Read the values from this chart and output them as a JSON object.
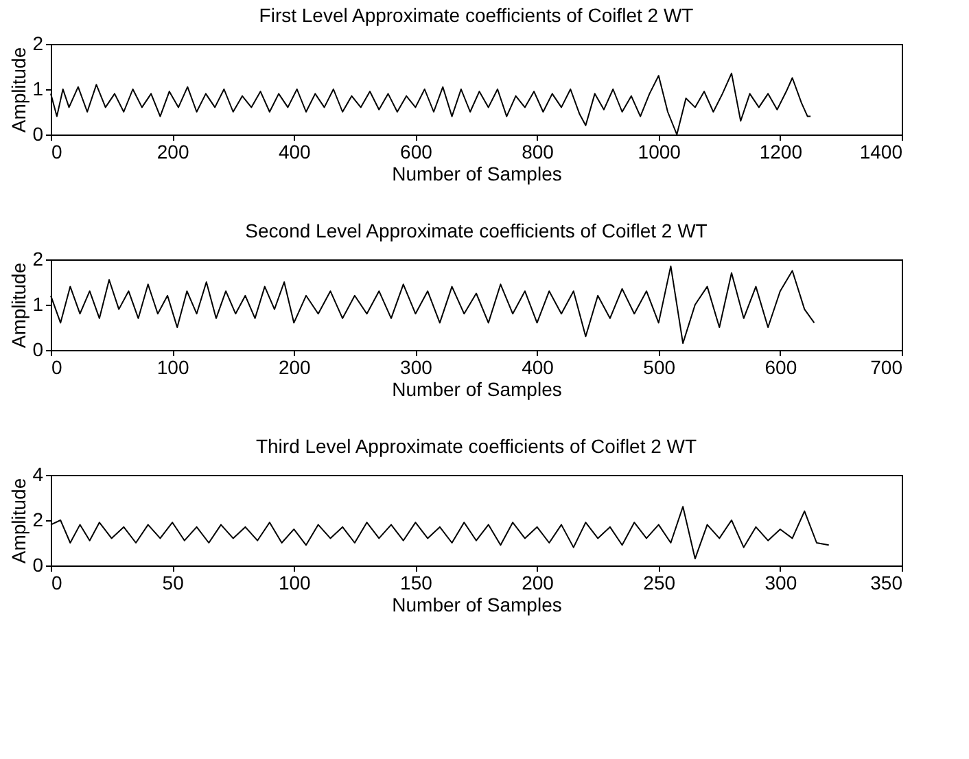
{
  "chart_data": [
    {
      "type": "line",
      "title": "First Level Approximate coefficients of Coiflet 2 WT",
      "xlabel": "Number of Samples",
      "ylabel": "Amplitude",
      "xlim": [
        0,
        1400
      ],
      "xticks": [
        0,
        200,
        400,
        600,
        800,
        1000,
        1200,
        1400
      ],
      "ylim": [
        0,
        2
      ],
      "yticks": [
        0,
        1,
        2
      ],
      "grid": false,
      "legend": false,
      "x": [
        0,
        10,
        20,
        30,
        45,
        60,
        75,
        90,
        105,
        120,
        135,
        150,
        165,
        180,
        195,
        210,
        225,
        240,
        255,
        270,
        285,
        300,
        315,
        330,
        345,
        360,
        375,
        390,
        405,
        420,
        435,
        450,
        465,
        480,
        495,
        510,
        525,
        540,
        555,
        570,
        585,
        600,
        615,
        630,
        645,
        660,
        675,
        690,
        705,
        720,
        735,
        750,
        765,
        780,
        795,
        810,
        825,
        840,
        855,
        870,
        880,
        895,
        910,
        925,
        940,
        955,
        970,
        985,
        1000,
        1015,
        1030,
        1045,
        1060,
        1075,
        1090,
        1105,
        1120,
        1135,
        1150,
        1165,
        1180,
        1195,
        1210,
        1220,
        1235,
        1245,
        1250
      ],
      "series": [
        {
          "color": "#000000",
          "values": [
            0.9,
            0.4,
            1.0,
            0.6,
            1.05,
            0.5,
            1.1,
            0.6,
            0.9,
            0.5,
            1.0,
            0.6,
            0.9,
            0.4,
            0.95,
            0.6,
            1.05,
            0.5,
            0.9,
            0.6,
            1.0,
            0.5,
            0.85,
            0.6,
            0.95,
            0.5,
            0.9,
            0.6,
            1.0,
            0.5,
            0.9,
            0.6,
            1.0,
            0.5,
            0.85,
            0.6,
            0.95,
            0.55,
            0.9,
            0.5,
            0.85,
            0.6,
            1.0,
            0.5,
            1.05,
            0.4,
            1.0,
            0.5,
            0.95,
            0.6,
            1.0,
            0.4,
            0.85,
            0.6,
            0.95,
            0.5,
            0.9,
            0.6,
            1.0,
            0.45,
            0.2,
            0.9,
            0.55,
            1.0,
            0.5,
            0.85,
            0.4,
            0.9,
            1.3,
            0.5,
            0.0,
            0.8,
            0.6,
            0.95,
            0.5,
            0.9,
            1.35,
            0.3,
            0.9,
            0.6,
            0.9,
            0.55,
            0.95,
            1.25,
            0.7,
            0.4,
            0.4
          ]
        }
      ]
    },
    {
      "type": "line",
      "title": "Second Level Approximate coefficients of Coiflet 2 WT",
      "xlabel": "Number of Samples",
      "ylabel": "Amplitude",
      "xlim": [
        0,
        700
      ],
      "xticks": [
        0,
        100,
        200,
        300,
        400,
        500,
        600,
        700
      ],
      "ylim": [
        0,
        2
      ],
      "yticks": [
        0,
        1,
        2
      ],
      "grid": false,
      "legend": false,
      "x": [
        0,
        8,
        16,
        24,
        32,
        40,
        48,
        56,
        64,
        72,
        80,
        88,
        96,
        104,
        112,
        120,
        128,
        136,
        144,
        152,
        160,
        168,
        176,
        184,
        192,
        200,
        210,
        220,
        230,
        240,
        250,
        260,
        270,
        280,
        290,
        300,
        310,
        320,
        330,
        340,
        350,
        360,
        370,
        380,
        390,
        400,
        410,
        420,
        430,
        440,
        450,
        460,
        470,
        480,
        490,
        500,
        510,
        520,
        530,
        540,
        550,
        560,
        570,
        580,
        590,
        600,
        610,
        620,
        628
      ],
      "series": [
        {
          "color": "#000000",
          "values": [
            1.2,
            0.6,
            1.4,
            0.8,
            1.3,
            0.7,
            1.55,
            0.9,
            1.3,
            0.7,
            1.45,
            0.8,
            1.2,
            0.5,
            1.3,
            0.8,
            1.5,
            0.7,
            1.3,
            0.8,
            1.2,
            0.7,
            1.4,
            0.9,
            1.5,
            0.6,
            1.2,
            0.8,
            1.3,
            0.7,
            1.2,
            0.8,
            1.3,
            0.7,
            1.45,
            0.8,
            1.3,
            0.6,
            1.4,
            0.8,
            1.25,
            0.6,
            1.45,
            0.8,
            1.3,
            0.6,
            1.3,
            0.8,
            1.3,
            0.3,
            1.2,
            0.7,
            1.35,
            0.8,
            1.3,
            0.6,
            1.85,
            0.15,
            1.0,
            1.4,
            0.5,
            1.7,
            0.7,
            1.4,
            0.5,
            1.3,
            1.75,
            0.9,
            0.6
          ]
        }
      ]
    },
    {
      "type": "line",
      "title": "Third Level Approximate coefficients of Coiflet 2 WT",
      "xlabel": "Number of Samples",
      "ylabel": "Amplitude",
      "xlim": [
        0,
        350
      ],
      "xticks": [
        0,
        50,
        100,
        150,
        200,
        250,
        300,
        350
      ],
      "ylim": [
        0,
        4
      ],
      "yticks": [
        0,
        2,
        4
      ],
      "grid": false,
      "legend": false,
      "x": [
        0,
        4,
        8,
        12,
        16,
        20,
        25,
        30,
        35,
        40,
        45,
        50,
        55,
        60,
        65,
        70,
        75,
        80,
        85,
        90,
        95,
        100,
        105,
        110,
        115,
        120,
        125,
        130,
        135,
        140,
        145,
        150,
        155,
        160,
        165,
        170,
        175,
        180,
        185,
        190,
        195,
        200,
        205,
        210,
        215,
        220,
        225,
        230,
        235,
        240,
        245,
        250,
        255,
        260,
        265,
        270,
        275,
        280,
        285,
        290,
        295,
        300,
        305,
        310,
        315,
        320
      ],
      "series": [
        {
          "color": "#000000",
          "values": [
            1.8,
            2.0,
            1.0,
            1.8,
            1.1,
            1.9,
            1.2,
            1.7,
            1.0,
            1.8,
            1.2,
            1.9,
            1.1,
            1.7,
            1.0,
            1.8,
            1.2,
            1.7,
            1.1,
            1.9,
            1.0,
            1.6,
            0.9,
            1.8,
            1.2,
            1.7,
            1.0,
            1.9,
            1.2,
            1.8,
            1.1,
            1.9,
            1.2,
            1.7,
            1.0,
            1.9,
            1.1,
            1.8,
            0.9,
            1.9,
            1.2,
            1.7,
            1.0,
            1.8,
            0.8,
            1.9,
            1.2,
            1.7,
            0.9,
            1.9,
            1.2,
            1.8,
            1.0,
            2.6,
            0.3,
            1.8,
            1.2,
            2.0,
            0.8,
            1.7,
            1.1,
            1.6,
            1.2,
            2.4,
            1.0,
            0.9
          ]
        }
      ]
    }
  ]
}
